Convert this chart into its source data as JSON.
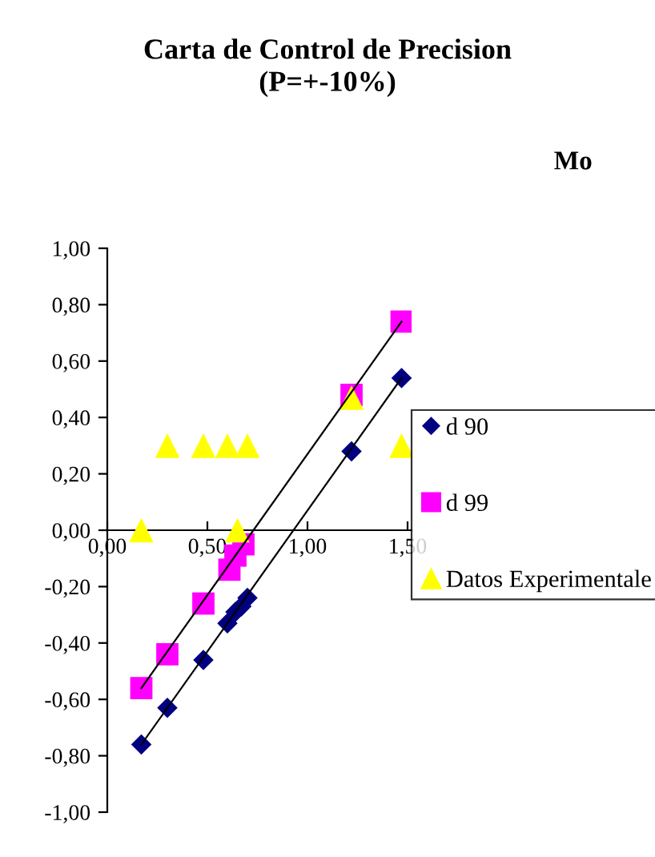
{
  "chart_data": {
    "type": "scatter",
    "title": "Carta de Control de Precision\n(P=+-10%)",
    "subtitle": "Mo",
    "series": [
      {
        "name": "d 90",
        "color": "#000080",
        "marker": "diamond",
        "x": [
          0.17,
          0.3,
          0.48,
          0.6,
          0.64,
          0.67,
          0.7,
          1.22,
          1.47
        ],
        "values": [
          -0.76,
          -0.63,
          -0.46,
          -0.33,
          -0.29,
          -0.27,
          -0.24,
          0.28,
          0.54
        ]
      },
      {
        "name": "d 99",
        "color": "#ff00ff",
        "marker": "square",
        "x": [
          0.17,
          0.3,
          0.48,
          0.61,
          0.64,
          0.68,
          1.22,
          1.47
        ],
        "values": [
          -0.56,
          -0.44,
          -0.26,
          -0.14,
          -0.09,
          -0.05,
          0.48,
          0.74
        ]
      },
      {
        "name": "Datos Experimentale",
        "color": "#ffff00",
        "marker": "triangle",
        "x": [
          0.17,
          0.3,
          0.48,
          0.6,
          0.7,
          0.65,
          1.22,
          1.47
        ],
        "values": [
          0.0,
          0.3,
          0.3,
          0.3,
          0.3,
          0.0,
          0.47,
          0.3
        ]
      },
      {
        "type": "line",
        "color": "#000000",
        "marker": "none",
        "x": [
          0.17,
          1.47
        ],
        "values": [
          -0.76,
          0.54
        ]
      },
      {
        "type": "line",
        "color": "#000000",
        "marker": "none",
        "x": [
          0.17,
          1.47
        ],
        "values": [
          -0.56,
          0.74
        ]
      }
    ],
    "xlim": [
      0,
      1.52
    ],
    "xticks": [
      {
        "value": 0,
        "label": "0,00"
      },
      {
        "value": 0.5,
        "label": "0,50"
      },
      {
        "value": 1.0,
        "label": "1,00"
      },
      {
        "value": 1.5,
        "label": "1,50"
      }
    ],
    "ylim": [
      -1.0,
      1.0
    ],
    "yticks": [
      {
        "value": -1.0,
        "label": "-1,00"
      },
      {
        "value": -0.8,
        "label": "-0,80"
      },
      {
        "value": -0.6,
        "label": "-0,60"
      },
      {
        "value": -0.4,
        "label": "-0,40"
      },
      {
        "value": -0.2,
        "label": "-0,20"
      },
      {
        "value": 0,
        "label": "0,00"
      },
      {
        "value": 0.2,
        "label": "0,20"
      },
      {
        "value": 0.4,
        "label": "0,40"
      },
      {
        "value": 0.6,
        "label": "0,60"
      },
      {
        "value": 0.8,
        "label": "0,80"
      },
      {
        "value": 1.0,
        "label": "1,00"
      }
    ],
    "grid": false,
    "legend": "right"
  }
}
